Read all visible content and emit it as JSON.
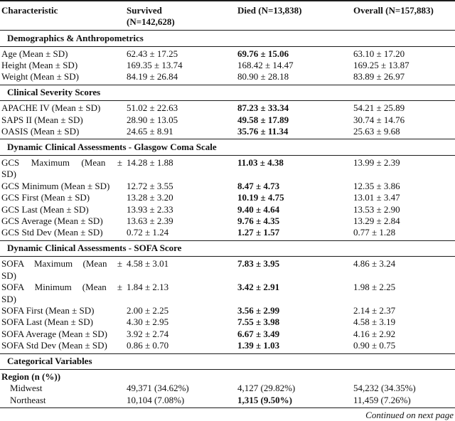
{
  "colors": {
    "text": "#111111",
    "rule": "#1c1c1c",
    "background": "#ffffff"
  },
  "table": {
    "header": {
      "characteristic": "Characteristic",
      "survived_line1": "Survived",
      "survived_line2": "(N=142,628)",
      "died": "Died (N=13,838)",
      "overall": "Overall (N=157,883)"
    },
    "sections": [
      {
        "title": "Demographics & Anthropometrics",
        "rows": [
          {
            "label": "Age (Mean ± SD)",
            "survived": "62.43 ± 17.25",
            "died": "69.76 ± 15.06",
            "died_bold": true,
            "overall": "63.10 ± 17.20"
          },
          {
            "label": "Height (Mean ± SD)",
            "survived": "169.35 ± 13.74",
            "died": "168.42 ± 14.47",
            "died_bold": false,
            "overall": "169.25 ± 13.87"
          },
          {
            "label": "Weight (Mean ± SD)",
            "survived": "84.19 ± 26.84",
            "died": "80.90 ± 28.18",
            "died_bold": false,
            "overall": "83.89 ± 26.97"
          }
        ]
      },
      {
        "title": "Clinical Severity Scores",
        "rows": [
          {
            "label": "APACHE IV (Mean ± SD)",
            "survived": "51.02 ± 22.63",
            "died": "87.23 ± 33.34",
            "died_bold": true,
            "overall": "54.21 ± 25.89"
          },
          {
            "label": "SAPS II (Mean ± SD)",
            "survived": "28.90 ± 13.05",
            "died": "49.58 ± 17.89",
            "died_bold": true,
            "overall": "30.74 ± 14.76"
          },
          {
            "label": "OASIS (Mean ± SD)",
            "survived": "24.65 ± 8.91",
            "died": "35.76 ± 11.34",
            "died_bold": true,
            "overall": "25.63 ± 9.68"
          }
        ]
      },
      {
        "title": "Dynamic Clinical Assessments - Glasgow Coma Scale",
        "rows": [
          {
            "label_lines": [
              "GCS Maximum (Mean ±",
              "SD)"
            ],
            "survived": "14.28 ± 1.88",
            "died": "11.03 ± 4.38",
            "died_bold": true,
            "overall": "13.99 ± 2.39"
          },
          {
            "label": "GCS Minimum (Mean ± SD)",
            "survived": "12.72 ± 3.55",
            "died": "8.47 ± 4.73",
            "died_bold": true,
            "overall": "12.35 ± 3.86"
          },
          {
            "label": "GCS First (Mean ± SD)",
            "survived": "13.28 ± 3.20",
            "died": "10.19 ± 4.75",
            "died_bold": true,
            "overall": "13.01 ± 3.47"
          },
          {
            "label": "GCS Last (Mean ± SD)",
            "survived": "13.93 ± 2.33",
            "died": "9.40 ± 4.64",
            "died_bold": true,
            "overall": "13.53 ± 2.90"
          },
          {
            "label": "GCS Average (Mean ± SD)",
            "survived": "13.63 ± 2.39",
            "died": "9.76 ± 4.35",
            "died_bold": true,
            "overall": "13.29 ± 2.84"
          },
          {
            "label": "GCS Std Dev (Mean ± SD)",
            "survived": "0.72 ± 1.24",
            "died": "1.27 ± 1.57",
            "died_bold": true,
            "overall": "0.77 ± 1.28"
          }
        ]
      },
      {
        "title": "Dynamic Clinical Assessments - SOFA Score",
        "rows": [
          {
            "label_lines": [
              "SOFA Maximum (Mean ±",
              "SD)"
            ],
            "survived": "4.58 ± 3.01",
            "died": "7.83 ± 3.95",
            "died_bold": true,
            "overall": "4.86 ± 3.24"
          },
          {
            "label_lines": [
              "SOFA Minimum (Mean ±",
              "SD)"
            ],
            "survived": "1.84 ± 2.13",
            "died": "3.42 ± 2.91",
            "died_bold": true,
            "overall": "1.98 ± 2.25"
          },
          {
            "label": "SOFA First (Mean ± SD)",
            "survived": "2.00 ± 2.25",
            "died": "3.56 ± 2.99",
            "died_bold": true,
            "overall": "2.14 ± 2.37"
          },
          {
            "label": "SOFA Last (Mean ± SD)",
            "survived": "4.30 ± 2.95",
            "died": "7.55 ± 3.98",
            "died_bold": true,
            "overall": "4.58 ± 3.19"
          },
          {
            "label": "SOFA Average (Mean ± SD)",
            "survived": "3.92 ± 2.74",
            "died": "6.67 ± 3.49",
            "died_bold": true,
            "overall": "4.16 ± 2.92"
          },
          {
            "label": "SOFA Std Dev (Mean ± SD)",
            "survived": "0.86 ± 0.70",
            "died": "1.39 ± 1.03",
            "died_bold": true,
            "overall": "0.90 ± 0.75"
          }
        ]
      },
      {
        "title": "Categorical Variables",
        "rows": [
          {
            "label": "Region (n (%))",
            "subheader": true
          },
          {
            "label": "Midwest",
            "indent": true,
            "survived": "49,371 (34.62%)",
            "died": "4,127 (29.82%)",
            "died_bold": false,
            "overall": "54,232 (34.35%)"
          },
          {
            "label": "Northeast",
            "indent": true,
            "survived": "10,104 (7.08%)",
            "died": "1,315 (9.50%)",
            "died_bold": true,
            "overall": "11,459 (7.26%)"
          }
        ]
      }
    ],
    "footer": "Continued on next page"
  }
}
